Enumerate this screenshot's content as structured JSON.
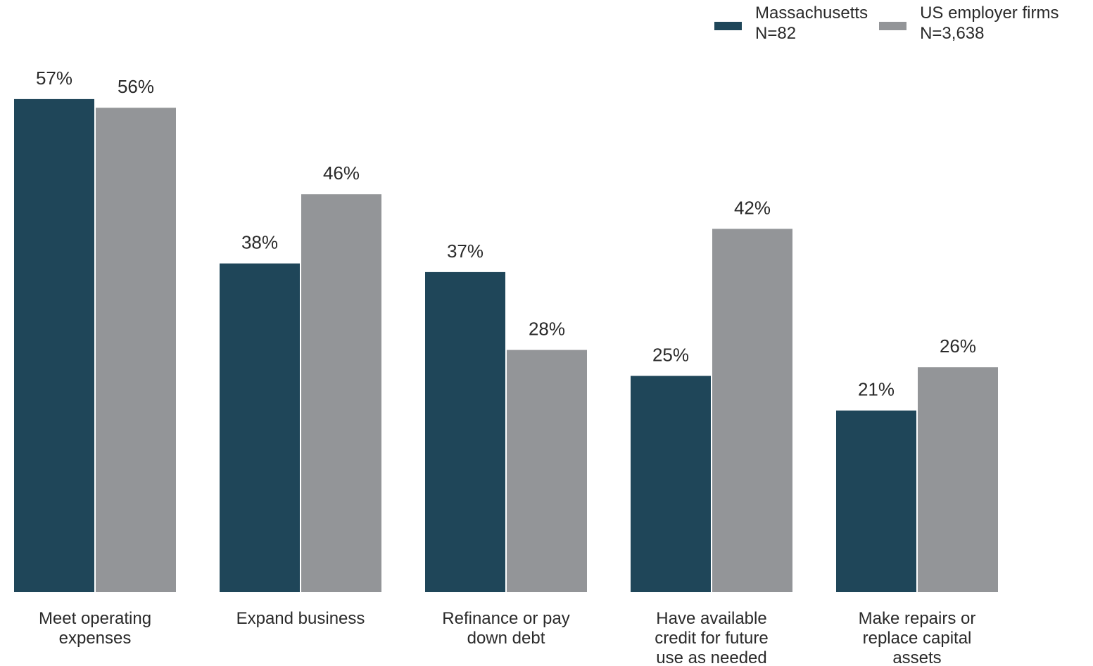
{
  "colors": {
    "massachusetts": "#1f4659",
    "us": "#939598"
  },
  "legend": [
    {
      "series": "massachusetts",
      "name": "Massachusetts",
      "n": "N=82"
    },
    {
      "series": "us",
      "name": "US employer firms",
      "n": "N=3,638"
    }
  ],
  "chart_data": {
    "type": "bar",
    "title": "",
    "xlabel": "",
    "ylabel": "",
    "ylim": [
      0,
      57
    ],
    "grid": false,
    "legend_position": "top-right",
    "value_suffix": "%",
    "categories": [
      [
        "Meet operating",
        "expenses"
      ],
      [
        "Expand business"
      ],
      [
        "Refinance or pay",
        "down debt"
      ],
      [
        "Have available",
        "credit for future",
        "use as needed"
      ],
      [
        "Make repairs or",
        "replace capital",
        "assets"
      ]
    ],
    "series": [
      {
        "key": "massachusetts",
        "name": "Massachusetts N=82",
        "values": [
          57,
          38,
          37,
          25,
          21
        ]
      },
      {
        "key": "us",
        "name": "US employer firms N=3,638",
        "values": [
          56,
          46,
          28,
          42,
          26
        ]
      }
    ]
  }
}
